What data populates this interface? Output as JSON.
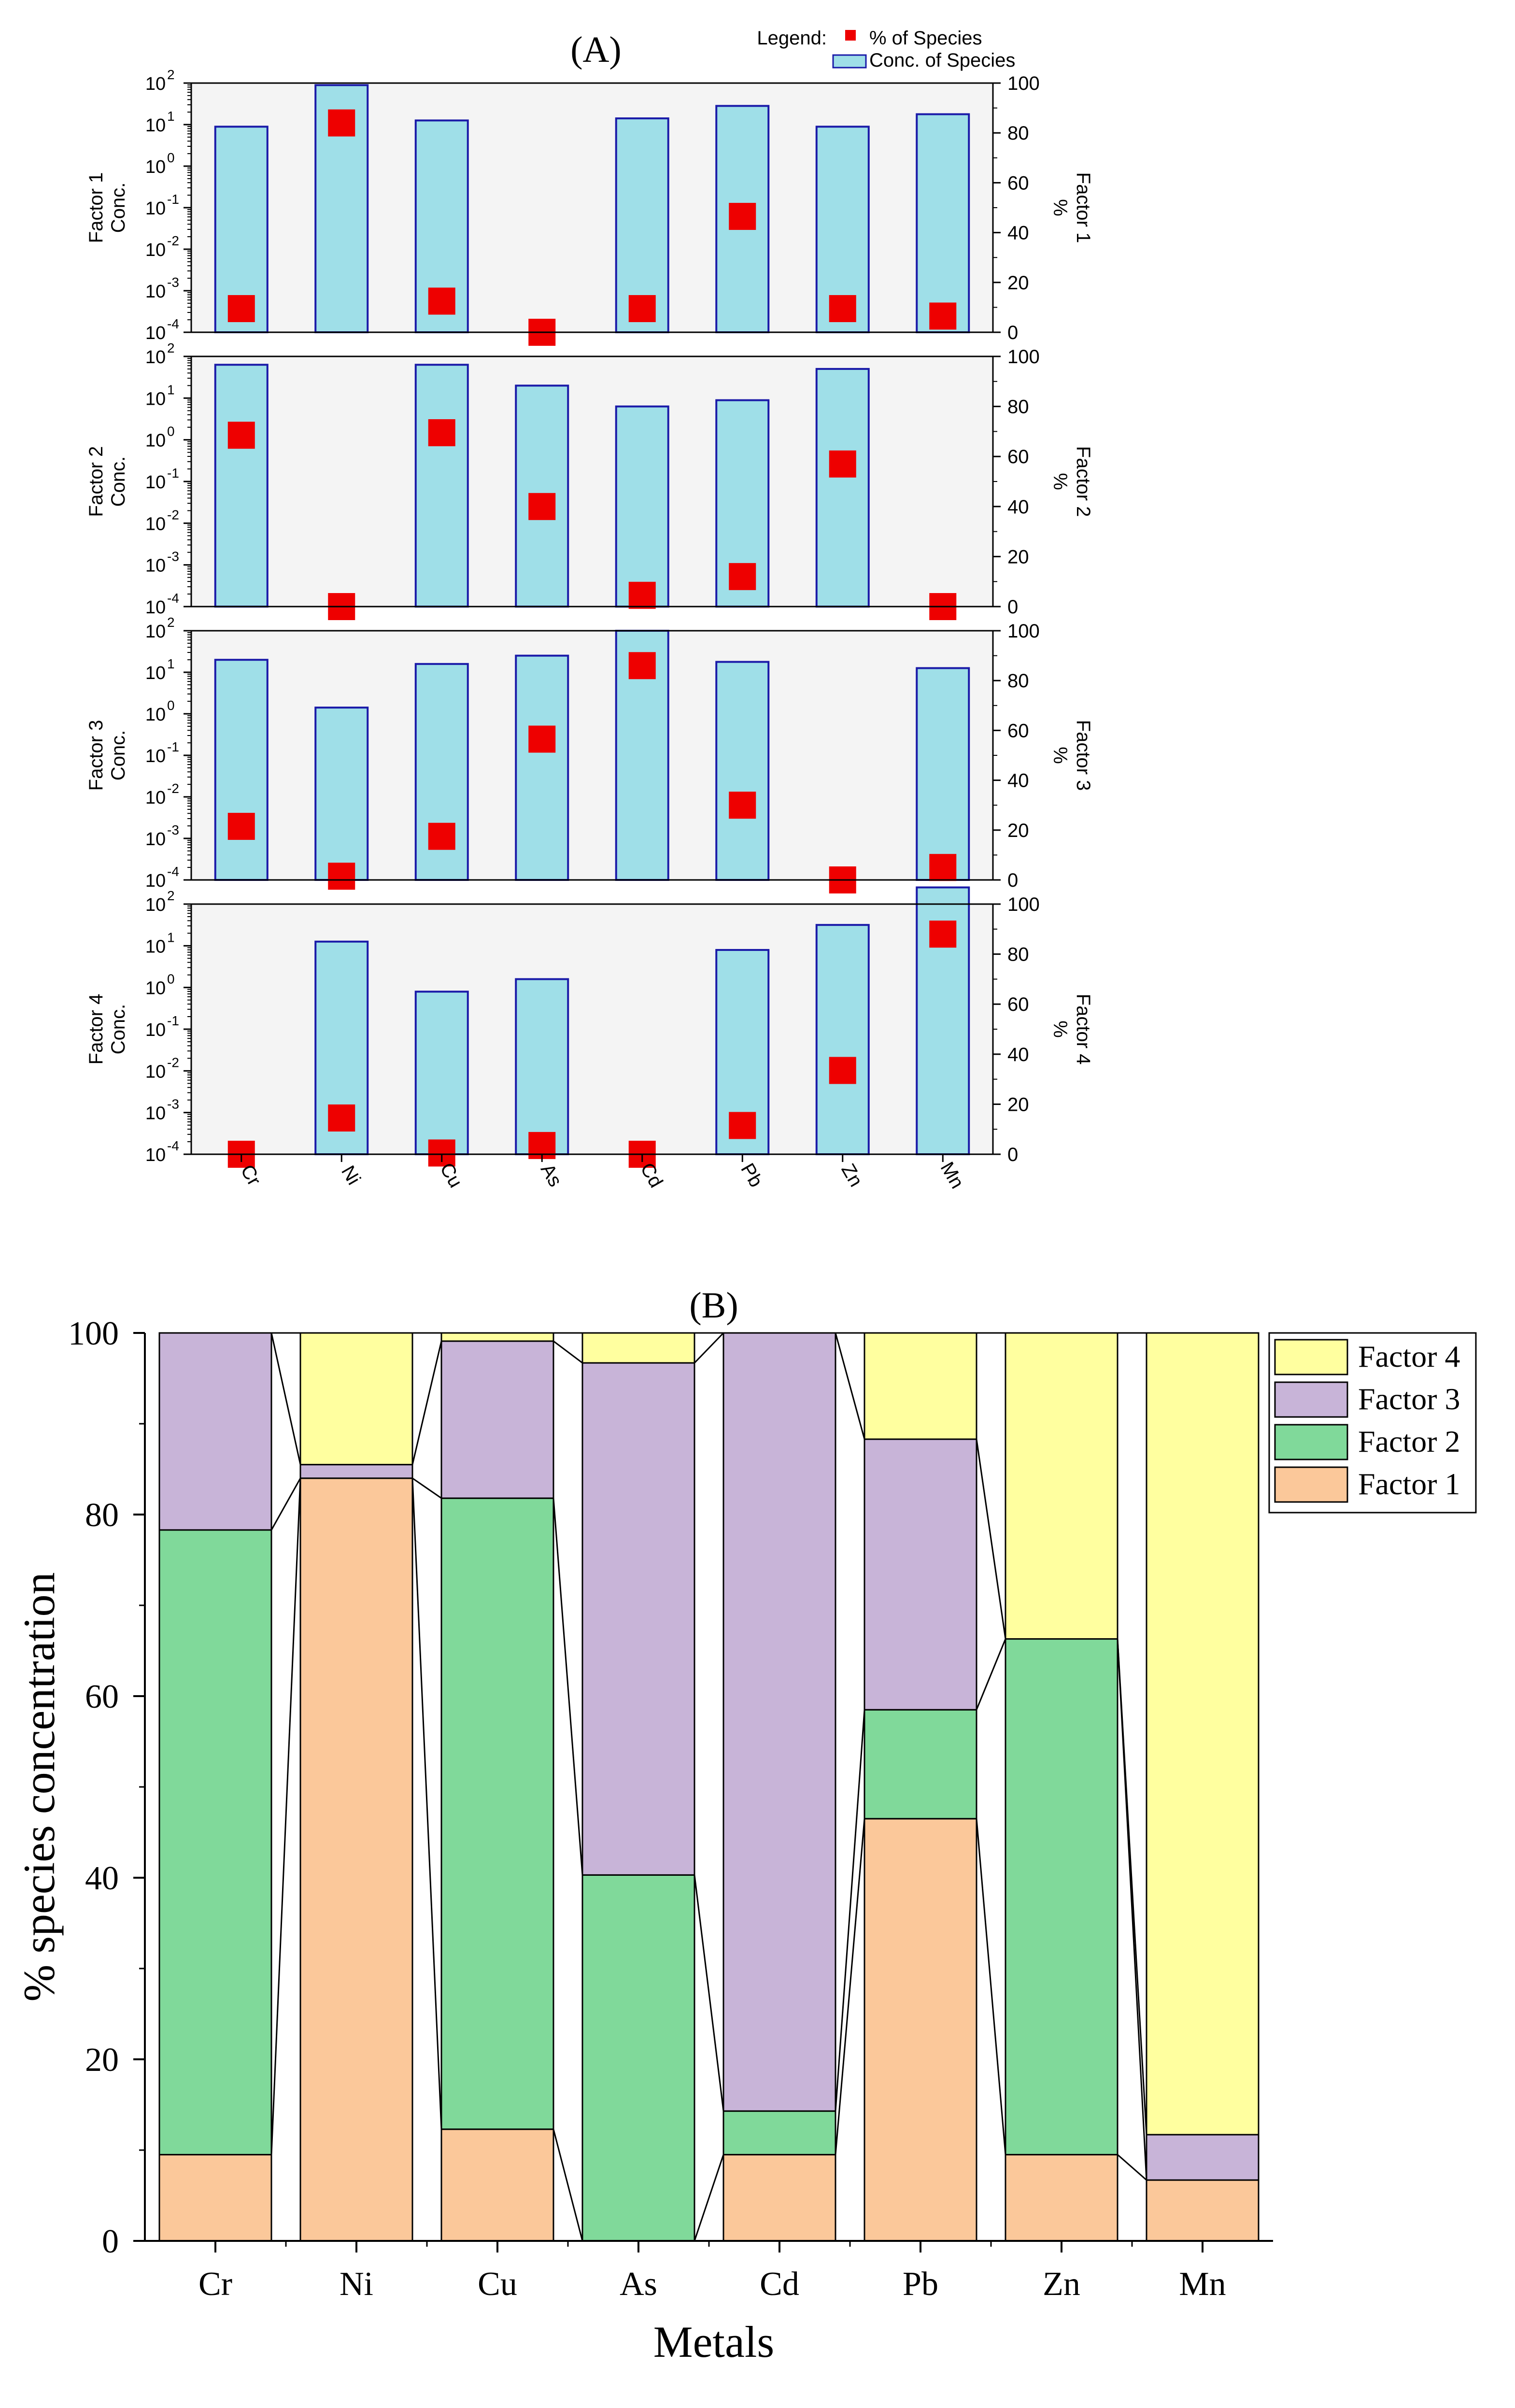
{
  "colors": {
    "bar_fill": "#9fdfe8",
    "bar_stroke": "#1a1aa8",
    "marker": "#ee0000",
    "panel_bg": "#f4f4f4",
    "factor1": "#fbc89a",
    "factor2": "#80d99a",
    "factor3": "#c8b4d8",
    "factor4": "#ffff9f"
  },
  "chart_data": [
    {
      "type": "bar+scatter",
      "title": "(A)",
      "legend": {
        "heading": "Legend:",
        "marker_label": "% of Species",
        "bar_label": "Conc. of Species",
        "placement": "top-right"
      },
      "categories": [
        "Cr",
        "Ni",
        "Cu",
        "As",
        "Cd",
        "Pb",
        "Zn",
        "Mn"
      ],
      "left_axis": {
        "scale": "log",
        "ylim_exponents": [
          -4,
          2
        ],
        "tick_exponents": [
          -4,
          -3,
          -2,
          -1,
          0,
          1,
          2
        ],
        "tick_base": "10"
      },
      "right_axis": {
        "ylim": [
          0,
          100
        ],
        "ticks": [
          "0",
          "20",
          "40",
          "60",
          "80",
          "100"
        ],
        "unit": "%"
      },
      "panels": [
        {
          "left_label": "Factor 1",
          "left_unit": "Conc.",
          "right_label": "Factor 1",
          "conc_exponents": [
            0.95,
            1.95,
            1.1,
            null,
            1.15,
            1.45,
            0.95,
            1.25
          ],
          "percent": [
            9.5,
            84,
            12.5,
            0,
            9.5,
            46.5,
            9.5,
            6.5
          ]
        },
        {
          "left_label": "Factor 2",
          "left_unit": "Conc.",
          "right_label": "Factor 2",
          "conc_exponents": [
            1.8,
            null,
            1.8,
            1.3,
            0.8,
            0.95,
            1.7,
            null
          ],
          "percent": [
            68.5,
            0,
            69.5,
            40,
            4.5,
            12,
            57,
            0
          ]
        },
        {
          "left_label": "Factor 3",
          "left_unit": "Conc.",
          "right_label": "Factor 3",
          "conc_exponents": [
            1.3,
            0.15,
            1.2,
            1.4,
            2.0,
            1.25,
            null,
            1.1
          ],
          "percent": [
            21.5,
            1.5,
            17.5,
            56.5,
            86,
            30,
            0,
            5
          ]
        },
        {
          "left_label": "Factor 4",
          "left_unit": "Conc.",
          "right_label": "Factor 4",
          "conc_exponents": [
            null,
            1.1,
            -0.1,
            0.2,
            null,
            0.9,
            1.5,
            2.4
          ],
          "percent": [
            0,
            14.5,
            0.5,
            3.5,
            0,
            11.5,
            33.5,
            88
          ]
        }
      ]
    },
    {
      "type": "bar",
      "stacked": true,
      "title": "(B)",
      "categories": [
        "Cr",
        "Ni",
        "Cu",
        "As",
        "Cd",
        "Pb",
        "Zn",
        "Mn"
      ],
      "xlabel": "Metals",
      "ylabel": "% species concentration",
      "ylim": [
        0,
        100
      ],
      "yticks": [
        "0",
        "20",
        "40",
        "60",
        "80",
        "100"
      ],
      "legend_placement": "top-right",
      "series": [
        {
          "name": "Factor 1",
          "values": [
            9.5,
            84,
            12.3,
            0,
            9.5,
            46.5,
            9.5,
            6.7
          ]
        },
        {
          "name": "Factor 2",
          "values": [
            68.8,
            0,
            69.5,
            40.3,
            4.8,
            12,
            56.8,
            0
          ]
        },
        {
          "name": "Factor 3",
          "values": [
            21.7,
            1.5,
            17.3,
            56.4,
            85.7,
            29.8,
            0,
            5
          ]
        },
        {
          "name": "Factor 4",
          "values": [
            0,
            14.5,
            0.9,
            3.3,
            0,
            11.7,
            33.7,
            88.3
          ]
        }
      ]
    }
  ]
}
